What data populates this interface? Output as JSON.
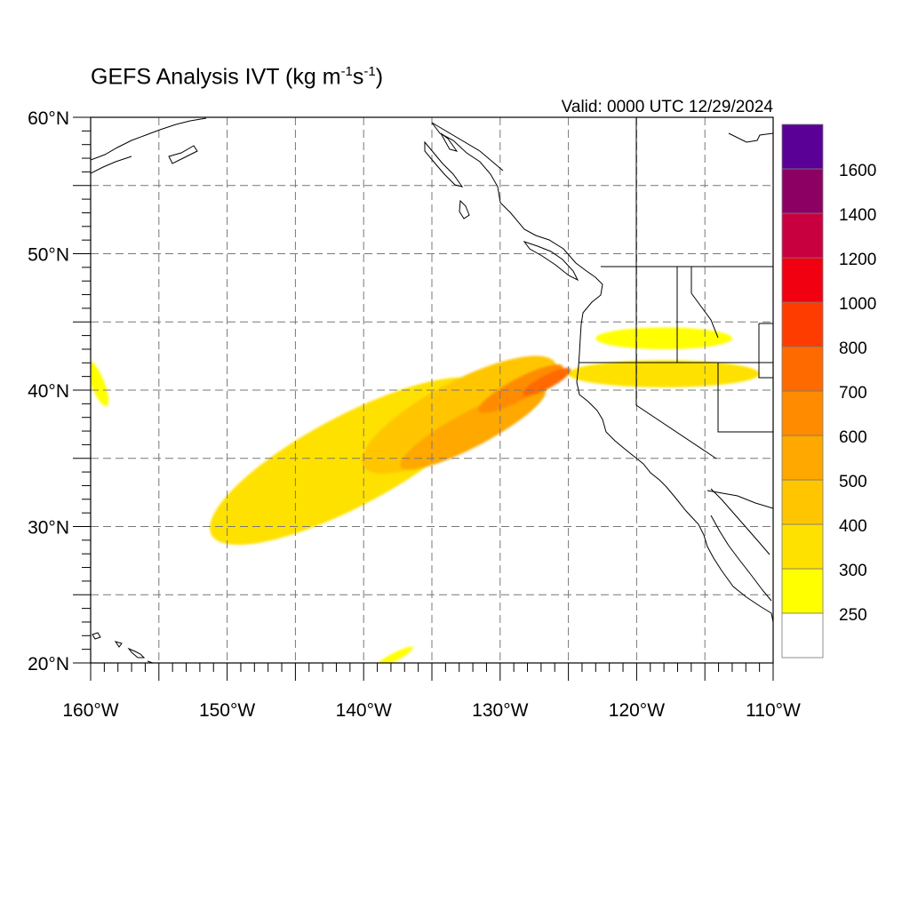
{
  "title": {
    "main": "GEFS Analysis IVT (kg m",
    "sup1": "-1",
    "mid": "s",
    "sup2": "-1",
    "end": ")"
  },
  "valid": "Valid: 0000 UTC 12/29/2024",
  "map": {
    "lon_range": [
      -160,
      -110
    ],
    "lat_range": [
      20,
      60
    ],
    "gridlines": "dashed every 5 degrees",
    "lon_ticks": [
      {
        "value": -160,
        "label": "160°W"
      },
      {
        "value": -150,
        "label": "150°W"
      },
      {
        "value": -140,
        "label": "140°W"
      },
      {
        "value": -130,
        "label": "130°W"
      },
      {
        "value": -120,
        "label": "120°W"
      },
      {
        "value": -110,
        "label": "110°W"
      }
    ],
    "lat_ticks": [
      {
        "value": 20,
        "label": "20°N"
      },
      {
        "value": 30,
        "label": "30°N"
      },
      {
        "value": 40,
        "label": "40°N"
      },
      {
        "value": 50,
        "label": "50°N"
      },
      {
        "value": 60,
        "label": "60°N"
      }
    ]
  },
  "colorbar": {
    "levels": [
      "250",
      "300",
      "400",
      "500",
      "600",
      "700",
      "800",
      "1000",
      "1200",
      "1400",
      "1600"
    ],
    "colors": [
      "#ffffff",
      "#ffff00",
      "#ffe100",
      "#ffc600",
      "#ffa800",
      "#ff8c00",
      "#ff6a00",
      "#ff3c00",
      "#f00010",
      "#c80040",
      "#8c0064",
      "#5a0096"
    ]
  },
  "chart_data": {
    "type": "heatmap",
    "variable": "IVT",
    "units": "kg m-1 s-1",
    "xlim": [
      -160,
      -110
    ],
    "ylim": [
      20,
      60
    ],
    "features": [
      {
        "kind": "ivt_band",
        "lon": -141,
        "lat": 34.8,
        "dlon": 23,
        "dlat": 6.6,
        "ivt": 300
      },
      {
        "kind": "ivt_band",
        "lon": -133,
        "lat": 38.2,
        "dlon": 16,
        "dlat": 4.8,
        "ivt": 420
      },
      {
        "kind": "ivt_band",
        "lon": -132,
        "lat": 37.2,
        "dlon": 12,
        "dlat": 2.6,
        "ivt": 520
      },
      {
        "kind": "ivt_band",
        "lon": -128.5,
        "lat": 40.1,
        "dlon": 7,
        "dlat": 1.6,
        "ivt": 650
      },
      {
        "kind": "ivt_band",
        "lon": -126.6,
        "lat": 40.6,
        "dlon": 4,
        "dlat": 1.0,
        "ivt": 720
      },
      {
        "kind": "ivt_band",
        "lon": -118,
        "lat": 41.2,
        "dlon": 14,
        "dlat": 2.0,
        "ivt": 300
      },
      {
        "kind": "ivt_band",
        "lon": -118,
        "lat": 43.8,
        "dlon": 10,
        "dlat": 1.6,
        "ivt": 280
      },
      {
        "kind": "ivt_band",
        "lon": -159.5,
        "lat": 40.5,
        "dlon": 1.0,
        "dlat": 3.6,
        "ivt": 270
      },
      {
        "kind": "ivt_band",
        "lon": -137.8,
        "lat": 20.4,
        "dlon": 3.2,
        "dlat": 0.6,
        "ivt": 270
      }
    ]
  }
}
